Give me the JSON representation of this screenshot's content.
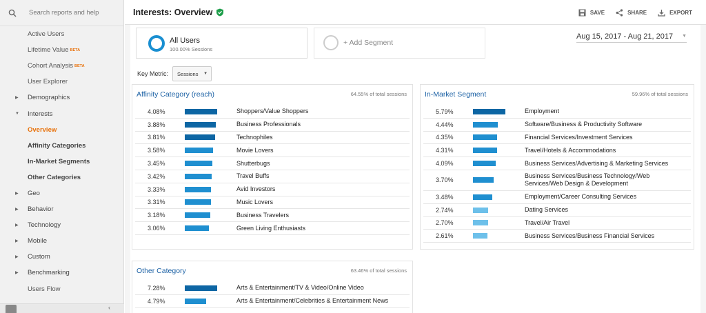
{
  "search": {
    "placeholder": "Search reports and help"
  },
  "sidebar": {
    "items": [
      {
        "label": "Active Users",
        "type": "sub"
      },
      {
        "label": "Lifetime Value",
        "badge": "BETA",
        "type": "sub"
      },
      {
        "label": "Cohort Analysis",
        "badge": "BETA",
        "type": "sub"
      },
      {
        "label": "User Explorer",
        "type": "sub"
      },
      {
        "label": "Demographics",
        "type": "top",
        "caret": "▶"
      },
      {
        "label": "Interests",
        "type": "top",
        "caret": "▼"
      },
      {
        "label": "Overview",
        "type": "active"
      },
      {
        "label": "Affinity Categories",
        "type": "bold"
      },
      {
        "label": "In-Market Segments",
        "type": "bold"
      },
      {
        "label": "Other Categories",
        "type": "bold"
      },
      {
        "label": "Geo",
        "type": "top",
        "caret": "▶"
      },
      {
        "label": "Behavior",
        "type": "top",
        "caret": "▶"
      },
      {
        "label": "Technology",
        "type": "top",
        "caret": "▶"
      },
      {
        "label": "Mobile",
        "type": "top",
        "caret": "▶"
      },
      {
        "label": "Custom",
        "type": "top",
        "caret": "▶"
      },
      {
        "label": "Benchmarking",
        "type": "top",
        "caret": "▶"
      },
      {
        "label": "Users Flow",
        "type": "sub"
      }
    ]
  },
  "header": {
    "title": "Interests: Overview",
    "save": "SAVE",
    "share": "SHARE",
    "export": "EXPORT"
  },
  "segments": {
    "all_users": "All Users",
    "all_users_sub": "100.00% Sessions",
    "add": "+ Add Segment"
  },
  "date_range": "Aug 15, 2017 - Aug 21, 2017",
  "key_metric": {
    "label": "Key Metric:",
    "value": "Sessions"
  },
  "colors": {
    "dark_bar": "#0d66a4",
    "mid_bar": "#1f8fd0",
    "light_bar": "#6dc0ea",
    "accent": "#e8710a",
    "title_blue": "#1d62a5"
  },
  "panels": {
    "affinity": {
      "title": "Affinity Category (reach)",
      "note": "64.55% of total sessions",
      "rows": [
        {
          "pct": "4.08%",
          "value": 4.08,
          "label": "Shoppers/Value Shoppers"
        },
        {
          "pct": "3.88%",
          "value": 3.88,
          "label": "Business Professionals"
        },
        {
          "pct": "3.81%",
          "value": 3.81,
          "label": "Technophiles"
        },
        {
          "pct": "3.58%",
          "value": 3.58,
          "label": "Movie Lovers"
        },
        {
          "pct": "3.45%",
          "value": 3.45,
          "label": "Shutterbugs"
        },
        {
          "pct": "3.42%",
          "value": 3.42,
          "label": "Travel Buffs"
        },
        {
          "pct": "3.33%",
          "value": 3.33,
          "label": "Avid Investors"
        },
        {
          "pct": "3.31%",
          "value": 3.31,
          "label": "Music Lovers"
        },
        {
          "pct": "3.18%",
          "value": 3.18,
          "label": "Business Travelers"
        },
        {
          "pct": "3.06%",
          "value": 3.06,
          "label": "Green Living Enthusiasts"
        }
      ]
    },
    "inmarket": {
      "title": "In-Market Segment",
      "note": "59.96% of total sessions",
      "rows": [
        {
          "pct": "5.79%",
          "value": 5.79,
          "label": "Employment"
        },
        {
          "pct": "4.44%",
          "value": 4.44,
          "label": "Software/Business & Productivity Software"
        },
        {
          "pct": "4.35%",
          "value": 4.35,
          "label": "Financial Services/Investment Services"
        },
        {
          "pct": "4.31%",
          "value": 4.31,
          "label": "Travel/Hotels & Accommodations"
        },
        {
          "pct": "4.09%",
          "value": 4.09,
          "label": "Business Services/Advertising & Marketing Services"
        },
        {
          "pct": "3.70%",
          "value": 3.7,
          "label": "Business Services/Business Technology/Web Services/Web Design & Development",
          "tall": true
        },
        {
          "pct": "3.48%",
          "value": 3.48,
          "label": "Employment/Career Consulting Services"
        },
        {
          "pct": "2.74%",
          "value": 2.74,
          "label": "Dating Services"
        },
        {
          "pct": "2.70%",
          "value": 2.7,
          "label": "Travel/Air Travel"
        },
        {
          "pct": "2.61%",
          "value": 2.61,
          "label": "Business Services/Business Financial Services"
        }
      ]
    },
    "other": {
      "title": "Other Category",
      "note": "63.46% of total sessions",
      "rows": [
        {
          "pct": "7.28%",
          "value": 7.28,
          "label": "Arts & Entertainment/TV & Video/Online Video"
        },
        {
          "pct": "4.79%",
          "value": 4.79,
          "label": "Arts & Entertainment/Celebrities & Entertainment News"
        }
      ]
    }
  }
}
